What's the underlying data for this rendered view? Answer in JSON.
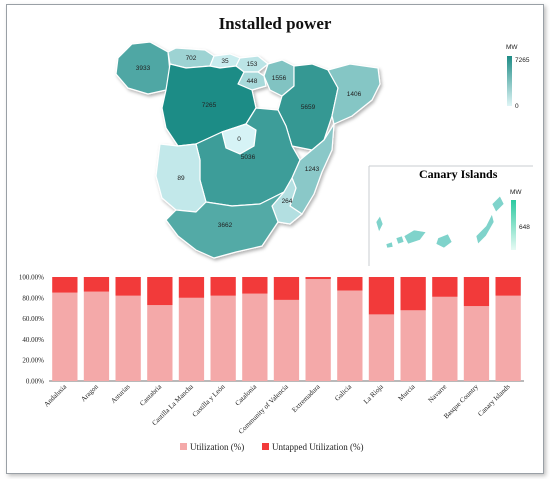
{
  "map": {
    "title": "Installed power",
    "unit": "MW",
    "scale_max": "7265",
    "scale_min": "0",
    "regions": [
      {
        "name": "Galicia",
        "value": 3933
      },
      {
        "name": "Asturias",
        "value": 702
      },
      {
        "name": "Cantabria",
        "value": 35
      },
      {
        "name": "Basque Country",
        "value": 153
      },
      {
        "name": "Navarre",
        "value": 1556
      },
      {
        "name": "La Rioja",
        "value": 448
      },
      {
        "name": "Castilla y León",
        "value": 7265
      },
      {
        "name": "Aragon",
        "value": 5659
      },
      {
        "name": "Catalonia",
        "value": 1406
      },
      {
        "name": "Madrid",
        "value": 0
      },
      {
        "name": "Castilla La Mancha",
        "value": 5036
      },
      {
        "name": "Extremadura",
        "value": 89
      },
      {
        "name": "Community of Valencia",
        "value": 1243
      },
      {
        "name": "Murcia",
        "value": 264
      },
      {
        "name": "Andalusia",
        "value": 3662
      }
    ],
    "canary": {
      "title": "Canary Islands",
      "unit": "MW",
      "value_label": "648",
      "value": 648
    }
  },
  "chart_data": {
    "type": "bar",
    "stacked": true,
    "categories": [
      "Andalusia",
      "Aragon",
      "Asturias",
      "Cantabria",
      "Castilla La Mancha",
      "Castilla y León",
      "Catalonia",
      "Community of Valencia",
      "Extremadura",
      "Galicia",
      "La Rioja",
      "Murcia",
      "Navarre",
      "Basque Country",
      "Canary Islands"
    ],
    "series": [
      {
        "name": "Utilization  (%)",
        "values": [
          85,
          86,
          82,
          73,
          80,
          82,
          84,
          78,
          98,
          87,
          64,
          68,
          81,
          72,
          82
        ]
      },
      {
        "name": "Untapped Utilization (%)",
        "values": [
          15,
          14,
          18,
          27,
          20,
          18,
          16,
          22,
          2,
          13,
          36,
          32,
          19,
          28,
          18
        ]
      }
    ],
    "yticks": [
      "0.00%",
      "20.00%",
      "40.00%",
      "60.00%",
      "80.00%",
      "100.00%"
    ],
    "ylim": [
      0,
      100
    ],
    "legend_position": "bottom",
    "colors": {
      "utilization": "#f4a9a9",
      "untapped": "#f23a3a"
    }
  }
}
